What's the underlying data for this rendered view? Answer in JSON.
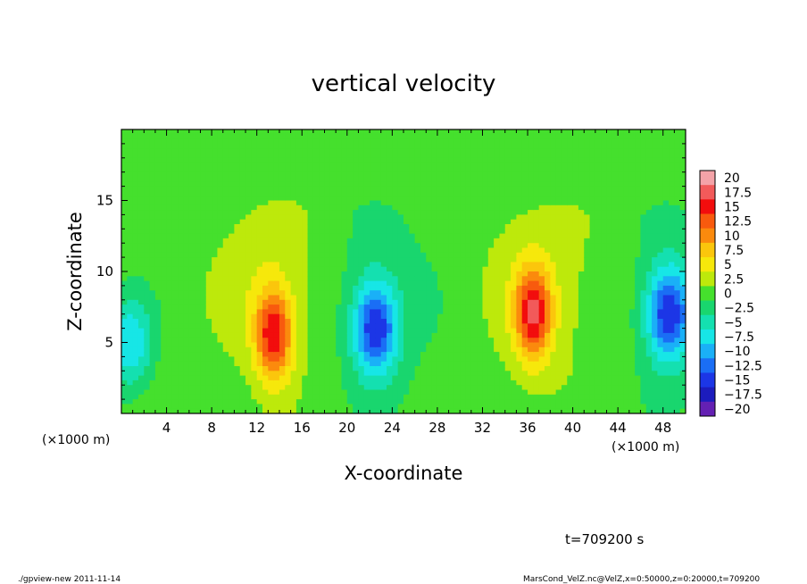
{
  "chart_data": {
    "type": "heatmap",
    "title": "vertical velocity",
    "xlabel": "X-coordinate",
    "ylabel": "Z-coordinate",
    "x_unit_left": "(×1000 m)",
    "x_unit_right": "(×1000 m)",
    "xlim": [
      0,
      50
    ],
    "ylim": [
      0,
      20
    ],
    "x_ticks": [
      4,
      8,
      12,
      16,
      20,
      24,
      28,
      32,
      36,
      40,
      44,
      48
    ],
    "y_ticks": [
      5,
      10,
      15
    ],
    "colorbar": {
      "levels": [
        20,
        17.5,
        15,
        12.5,
        10,
        7.5,
        5,
        2.5,
        0,
        -2.5,
        -5,
        -7.5,
        -10,
        -12.5,
        -15,
        -17.5,
        -20
      ],
      "labels": [
        "20",
        "17.5",
        "15",
        "12.5",
        "10",
        "7.5",
        "5",
        "2.5",
        "0",
        "−2.5",
        "−5",
        "−7.5",
        "−10",
        "−12.5",
        "−15",
        "−17.5",
        "−20"
      ],
      "colors": [
        "#f4a3a8",
        "#f25a5a",
        "#f20d0d",
        "#f85a0e",
        "#fb8a0d",
        "#fbc60c",
        "#f6e80b",
        "#bde90b",
        "#45e02d",
        "#19d66e",
        "#14e0b0",
        "#17e6e6",
        "#1ab0f7",
        "#1a6ef5",
        "#1c36e6",
        "#1c1cbd",
        "#6420b3"
      ]
    },
    "features": [
      {
        "kind": "updraft",
        "x": 13.5,
        "z": 5.5,
        "peak": 12.5
      },
      {
        "kind": "downdraft",
        "x": 22.5,
        "z": 6.0,
        "peak": -12.5
      },
      {
        "kind": "updraft",
        "x": 36.5,
        "z": 7.0,
        "peak": 12.5
      },
      {
        "kind": "downdraft",
        "x": 48.5,
        "z": 7.0,
        "peak": -12.5
      },
      {
        "kind": "downdraft",
        "x": 0.8,
        "z": 5.0,
        "peak": -7.5
      }
    ],
    "time_label": "t=709200 s"
  },
  "footer": {
    "left": "./gpview-new  2011-11-14",
    "right": "MarsCond_VelZ.nc@VelZ,x=0:50000,z=0:20000,t=709200"
  }
}
